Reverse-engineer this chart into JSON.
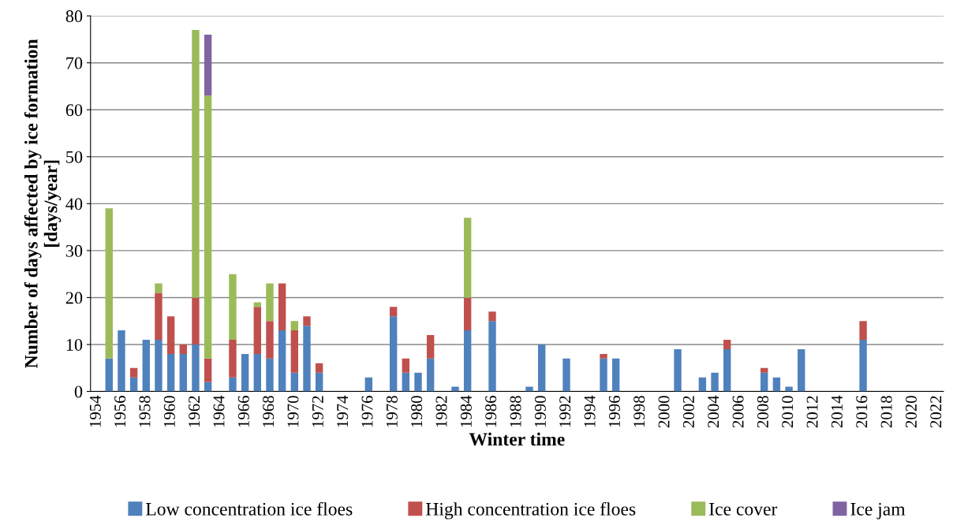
{
  "chart_data": {
    "type": "bar",
    "stacked": true,
    "xlabel": "Winter time",
    "ylabel": "Number of days affected by ice formation\n[days/year]",
    "categories": [
      "1954",
      null,
      "1956",
      null,
      "1958",
      null,
      "1960",
      null,
      "1962",
      null,
      "1964",
      null,
      "1966",
      null,
      "1968",
      null,
      "1970",
      null,
      "1972",
      null,
      "1974",
      null,
      "1976",
      null,
      "1978",
      null,
      "1980",
      null,
      "1982",
      null,
      "1984",
      null,
      "1986",
      null,
      "1988",
      null,
      "1990",
      null,
      "1992",
      null,
      "1994",
      null,
      "1996",
      null,
      "1998",
      null,
      "2000",
      null,
      "2002",
      null,
      "2004",
      null,
      "2006",
      null,
      "2008",
      null,
      "2010",
      null,
      "2012",
      null,
      "2014",
      null,
      "2016",
      null,
      "2018",
      null,
      "2020",
      null,
      "2022"
    ],
    "series": [
      {
        "name": "Low concentration ice floes",
        "color": "#4f81bd",
        "values": [
          null,
          7,
          13,
          3,
          11,
          11,
          8,
          8,
          10,
          2,
          null,
          3,
          8,
          8,
          7,
          13,
          4,
          14,
          4,
          null,
          null,
          null,
          3,
          null,
          16,
          4,
          4,
          7,
          null,
          1,
          13,
          null,
          15,
          null,
          null,
          1,
          10,
          null,
          7,
          null,
          null,
          7,
          7,
          null,
          null,
          null,
          null,
          9,
          null,
          3,
          4,
          9,
          null,
          null,
          4,
          3,
          1,
          9,
          null,
          null,
          null,
          null,
          11,
          null,
          null,
          null,
          null,
          null,
          null
        ]
      },
      {
        "name": "High concentration ice floes",
        "color": "#c0504d",
        "values": [
          null,
          null,
          null,
          2,
          null,
          10,
          8,
          2,
          10,
          5,
          null,
          8,
          null,
          10,
          8,
          10,
          9,
          2,
          2,
          null,
          null,
          null,
          null,
          null,
          2,
          3,
          null,
          5,
          null,
          null,
          7,
          null,
          2,
          null,
          null,
          null,
          null,
          null,
          null,
          null,
          null,
          1,
          null,
          null,
          null,
          null,
          null,
          null,
          null,
          null,
          null,
          2,
          null,
          null,
          1,
          null,
          null,
          null,
          null,
          null,
          null,
          null,
          4,
          null,
          null,
          null,
          null,
          null,
          null
        ]
      },
      {
        "name": "Ice cover",
        "color": "#9bbb59",
        "values": [
          null,
          32,
          null,
          null,
          null,
          2,
          null,
          null,
          57,
          56,
          null,
          14,
          null,
          1,
          8,
          null,
          2,
          null,
          null,
          null,
          null,
          null,
          null,
          null,
          null,
          null,
          null,
          null,
          null,
          null,
          17,
          null,
          null,
          null,
          null,
          null,
          null,
          null,
          null,
          null,
          null,
          null,
          null,
          null,
          null,
          null,
          null,
          null,
          null,
          null,
          null,
          null,
          null,
          null,
          null,
          null,
          null,
          null,
          null,
          null,
          null,
          null,
          null,
          null,
          null,
          null,
          null,
          null,
          null
        ]
      },
      {
        "name": "Ice jam",
        "color": "#8064a2",
        "values": [
          null,
          null,
          null,
          null,
          null,
          null,
          null,
          null,
          null,
          13,
          null,
          null,
          null,
          null,
          null,
          null,
          null,
          null,
          null,
          null,
          null,
          null,
          null,
          null,
          null,
          null,
          null,
          null,
          null,
          null,
          null,
          null,
          null,
          null,
          null,
          null,
          null,
          null,
          null,
          null,
          null,
          null,
          null,
          null,
          null,
          null,
          null,
          null,
          null,
          null,
          null,
          null,
          null,
          null,
          null,
          null,
          null,
          null,
          null,
          null,
          null,
          null,
          null,
          null,
          null,
          null,
          null,
          null,
          null
        ]
      }
    ],
    "ylim": [
      0,
      80
    ],
    "yticks": [
      0,
      10,
      20,
      30,
      40,
      50,
      60,
      70,
      80
    ],
    "grid": "y",
    "legend": "bottom"
  }
}
